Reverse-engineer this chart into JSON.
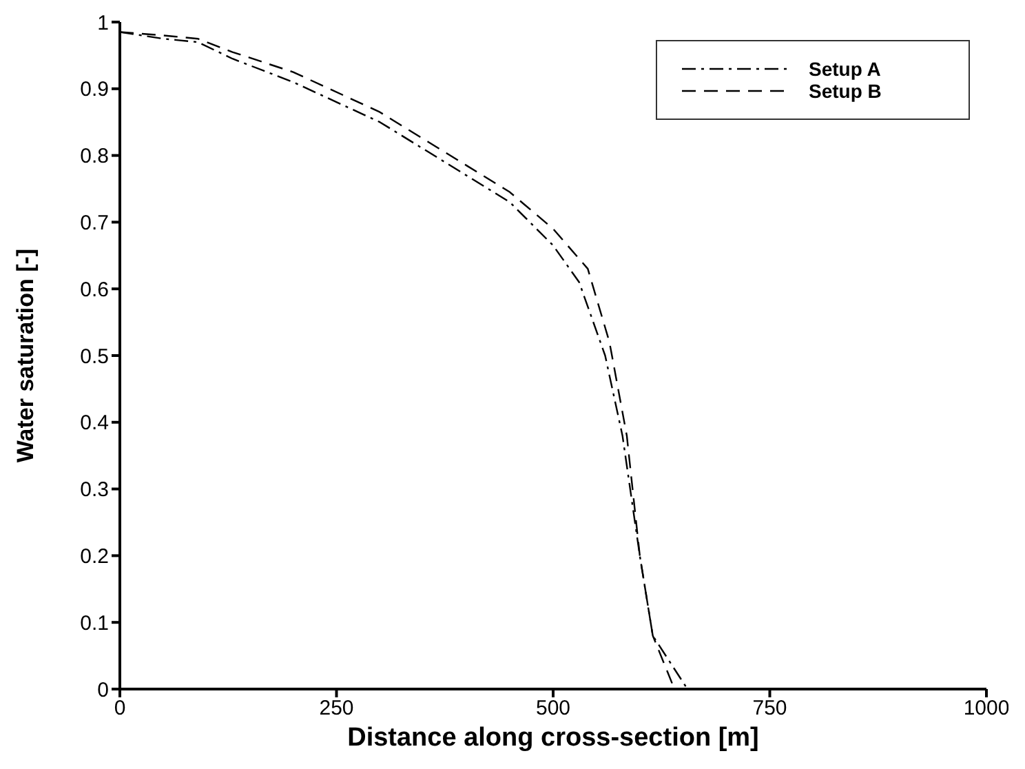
{
  "chart_data": {
    "type": "line",
    "xlabel": "Distance along cross-section [m]",
    "ylabel": "Water saturation [-]",
    "xlim": [
      0,
      1000
    ],
    "xticks": [
      0,
      250,
      500,
      750,
      1000
    ],
    "ylim": [
      0,
      1
    ],
    "yticks": [
      0,
      0.1,
      0.2,
      0.3,
      0.4,
      0.5,
      0.6,
      0.7,
      0.8,
      0.9,
      1
    ],
    "grid": false,
    "legend": "top right",
    "marker": "none",
    "series": [
      {
        "name": "Setup A",
        "color": "#000000",
        "line_style": "dashdot",
        "x": [
          0,
          50,
          90,
          130,
          200,
          300,
          400,
          450,
          500,
          530,
          560,
          580,
          600,
          615,
          655
        ],
        "values": [
          0.985,
          0.975,
          0.97,
          0.945,
          0.91,
          0.85,
          0.77,
          0.73,
          0.665,
          0.61,
          0.5,
          0.38,
          0.2,
          0.08,
          0
        ]
      },
      {
        "name": "Setup B",
        "color": "#000000",
        "line_style": "dashed",
        "x": [
          0,
          50,
          90,
          130,
          200,
          300,
          400,
          450,
          500,
          540,
          565,
          585,
          600,
          615,
          640
        ],
        "values": [
          0.985,
          0.98,
          0.975,
          0.955,
          0.925,
          0.865,
          0.785,
          0.745,
          0.69,
          0.63,
          0.52,
          0.38,
          0.2,
          0.08,
          0
        ]
      }
    ]
  }
}
